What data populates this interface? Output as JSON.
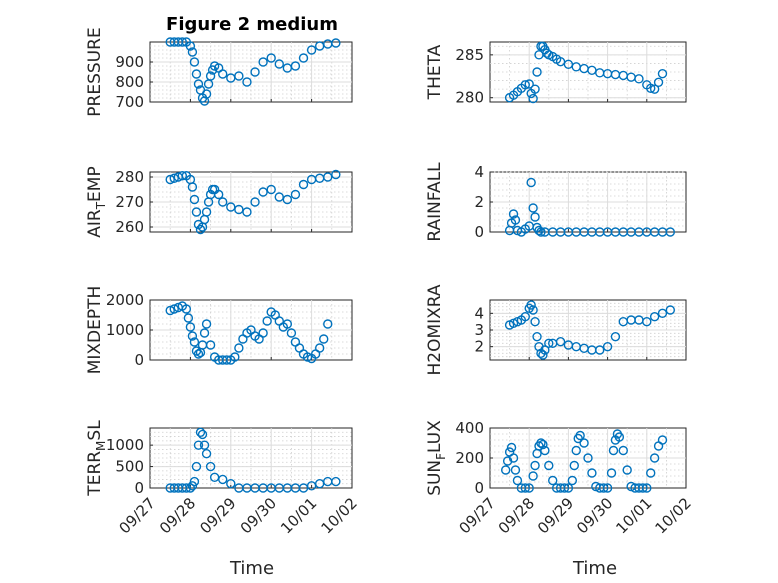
{
  "figure": {
    "title": "Figure 2 medium",
    "xlabel": "Time",
    "marker_color": "#0072BD",
    "xticks": [
      "09/27",
      "09/28",
      "09/29",
      "09/30",
      "10/01",
      "10/02"
    ]
  },
  "chart_data": [
    {
      "type": "scatter",
      "ylabel": "PRESSURE",
      "ylim": [
        700,
        1000
      ],
      "yticks": [
        "700",
        "800",
        "900"
      ],
      "grid": "on",
      "xlim": [
        "09/27",
        "10/02"
      ],
      "x": [
        0.5,
        0.6,
        0.7,
        0.8,
        0.9,
        1.0,
        1.05,
        1.1,
        1.15,
        1.2,
        1.25,
        1.3,
        1.35,
        1.4,
        1.45,
        1.5,
        1.55,
        1.6,
        1.7,
        1.8,
        2.0,
        2.2,
        2.4,
        2.6,
        2.8,
        3.0,
        3.2,
        3.4,
        3.6,
        3.8,
        4.0,
        4.2,
        4.4,
        4.6
      ],
      "y": [
        1000,
        1000,
        1000,
        1000,
        1000,
        980,
        950,
        900,
        840,
        790,
        760,
        720,
        705,
        740,
        790,
        830,
        860,
        880,
        870,
        840,
        820,
        830,
        800,
        850,
        900,
        920,
        890,
        870,
        880,
        920,
        960,
        980,
        990,
        995
      ],
      "x_units": "days since 09/27"
    },
    {
      "type": "scatter",
      "ylabel": "THETA",
      "ylim": [
        279.5,
        286.5
      ],
      "yticks": [
        "280",
        "285"
      ],
      "grid": "on",
      "xlim": [
        "09/27",
        "10/02"
      ],
      "x": [
        0.5,
        0.6,
        0.7,
        0.8,
        0.9,
        1.0,
        1.05,
        1.1,
        1.15,
        1.2,
        1.25,
        1.3,
        1.35,
        1.4,
        1.45,
        1.5,
        1.6,
        1.7,
        1.8,
        2.0,
        2.2,
        2.4,
        2.6,
        2.8,
        3.0,
        3.2,
        3.4,
        3.6,
        3.8,
        4.0,
        4.1,
        4.2,
        4.3,
        4.4
      ],
      "y": [
        280,
        280.3,
        280.7,
        281.1,
        281.5,
        281.6,
        280.5,
        279.9,
        281.0,
        283.0,
        285.0,
        286.0,
        286.0,
        285.6,
        285.2,
        285.0,
        284.8,
        284.5,
        284.2,
        283.9,
        283.6,
        283.4,
        283.2,
        282.9,
        282.8,
        282.7,
        282.6,
        282.4,
        282.2,
        281.5,
        281.1,
        281.0,
        281.8,
        282.8
      ]
    },
    {
      "type": "scatter",
      "ylabel": "AIR_TEMP",
      "ylim": [
        258,
        282
      ],
      "yticks": [
        "260",
        "270",
        "280"
      ],
      "grid": "on",
      "xlim": [
        "09/27",
        "10/02"
      ],
      "x": [
        0.5,
        0.6,
        0.7,
        0.8,
        0.9,
        1.0,
        1.05,
        1.1,
        1.15,
        1.2,
        1.25,
        1.3,
        1.35,
        1.4,
        1.45,
        1.5,
        1.55,
        1.6,
        1.7,
        1.8,
        2.0,
        2.2,
        2.4,
        2.6,
        2.8,
        3.0,
        3.2,
        3.4,
        3.6,
        3.8,
        4.0,
        4.2,
        4.4,
        4.6
      ],
      "y": [
        279,
        279.5,
        280,
        280.5,
        280.5,
        279,
        276,
        271,
        266,
        261,
        259,
        260,
        263,
        266,
        270,
        273,
        275,
        275,
        273,
        270,
        268,
        267,
        266,
        270,
        274,
        275,
        272,
        271,
        273,
        277,
        279,
        279.5,
        280,
        281
      ]
    },
    {
      "type": "scatter",
      "ylabel": "RAINFALL",
      "ylim": [
        0,
        4
      ],
      "yticks": [
        "0",
        "2",
        "4"
      ],
      "grid": "on",
      "xlim": [
        "09/27",
        "10/02"
      ],
      "x": [
        0.5,
        0.55,
        0.6,
        0.65,
        0.7,
        0.8,
        0.9,
        1.0,
        1.05,
        1.1,
        1.15,
        1.2,
        1.25,
        1.3,
        1.4,
        1.6,
        1.8,
        2.0,
        2.2,
        2.4,
        2.6,
        2.8,
        3.0,
        3.2,
        3.4,
        3.6,
        3.8,
        4.0,
        4.2,
        4.4,
        4.6
      ],
      "y": [
        0.1,
        0.6,
        1.2,
        0.8,
        0.1,
        0,
        0.2,
        0.4,
        3.3,
        1.6,
        1.0,
        0.3,
        0.1,
        0,
        0,
        0,
        0,
        0,
        0,
        0,
        0,
        0,
        0,
        0,
        0,
        0,
        0,
        0,
        0,
        0,
        0
      ]
    },
    {
      "type": "scatter",
      "ylabel": "MIXDEPTH",
      "ylim": [
        0,
        2000
      ],
      "yticks": [
        "0",
        "1000",
        "2000"
      ],
      "grid": "on",
      "xlim": [
        "09/27",
        "10/02"
      ],
      "x": [
        0.5,
        0.6,
        0.7,
        0.8,
        0.9,
        0.95,
        1.0,
        1.05,
        1.1,
        1.15,
        1.2,
        1.25,
        1.3,
        1.35,
        1.4,
        1.5,
        1.6,
        1.7,
        1.8,
        1.9,
        2.0,
        2.1,
        2.2,
        2.3,
        2.4,
        2.5,
        2.6,
        2.7,
        2.8,
        2.9,
        3.0,
        3.1,
        3.2,
        3.3,
        3.4,
        3.5,
        3.6,
        3.7,
        3.8,
        3.9,
        4.0,
        4.1,
        4.2,
        4.3,
        4.4
      ],
      "y": [
        1650,
        1700,
        1750,
        1800,
        1700,
        1400,
        1100,
        800,
        600,
        300,
        200,
        250,
        500,
        900,
        1200,
        500,
        100,
        0,
        0,
        0,
        0,
        100,
        400,
        700,
        900,
        1000,
        800,
        700,
        900,
        1300,
        1600,
        1500,
        1300,
        1100,
        1200,
        900,
        600,
        400,
        200,
        100,
        50,
        200,
        400,
        700,
        1200
      ]
    },
    {
      "type": "scatter",
      "ylabel": "H2OMIXRA",
      "ylim": [
        1.2,
        4.8
      ],
      "yticks": [
        "2",
        "3",
        "4"
      ],
      "grid": "on",
      "xlim": [
        "09/27",
        "10/02"
      ],
      "x": [
        0.5,
        0.6,
        0.7,
        0.8,
        0.9,
        1.0,
        1.05,
        1.1,
        1.15,
        1.2,
        1.25,
        1.3,
        1.35,
        1.4,
        1.5,
        1.6,
        1.8,
        2.0,
        2.2,
        2.4,
        2.6,
        2.8,
        3.0,
        3.2,
        3.4,
        3.6,
        3.8,
        4.0,
        4.2,
        4.4,
        4.6
      ],
      "y": [
        3.3,
        3.4,
        3.5,
        3.6,
        3.8,
        4.3,
        4.5,
        4.2,
        3.5,
        2.6,
        2.0,
        1.6,
        1.5,
        1.8,
        2.2,
        2.2,
        2.3,
        2.1,
        2.0,
        1.9,
        1.8,
        1.8,
        2.0,
        2.6,
        3.5,
        3.6,
        3.6,
        3.5,
        3.8,
        4.0,
        4.2
      ]
    },
    {
      "type": "scatter",
      "ylabel": "TERR_MSL",
      "ylim": [
        0,
        1400
      ],
      "yticks": [
        "0",
        "500",
        "1000"
      ],
      "grid": "on",
      "xlim": [
        "09/27",
        "10/02"
      ],
      "x": [
        0.5,
        0.6,
        0.7,
        0.8,
        0.9,
        1.0,
        1.05,
        1.1,
        1.15,
        1.2,
        1.25,
        1.3,
        1.35,
        1.4,
        1.5,
        1.6,
        1.8,
        2.0,
        2.2,
        2.4,
        2.6,
        2.8,
        3.0,
        3.2,
        3.4,
        3.6,
        3.8,
        4.0,
        4.2,
        4.4,
        4.6
      ],
      "y": [
        0,
        0,
        0,
        0,
        0,
        0,
        50,
        150,
        500,
        1000,
        1300,
        1250,
        1000,
        800,
        500,
        250,
        200,
        100,
        0,
        0,
        0,
        0,
        0,
        0,
        0,
        0,
        0,
        50,
        100,
        150,
        150
      ]
    },
    {
      "type": "scatter",
      "ylabel": "SUN_FLUX",
      "ylim": [
        0,
        400
      ],
      "yticks": [
        "0",
        "200",
        "400"
      ],
      "grid": "on",
      "xlim": [
        "09/27",
        "10/02"
      ],
      "x": [
        0.4,
        0.45,
        0.5,
        0.55,
        0.6,
        0.65,
        0.7,
        0.8,
        0.9,
        1.0,
        1.1,
        1.15,
        1.2,
        1.25,
        1.3,
        1.35,
        1.4,
        1.5,
        1.6,
        1.7,
        1.8,
        1.9,
        2.0,
        2.1,
        2.15,
        2.2,
        2.25,
        2.3,
        2.4,
        2.5,
        2.6,
        2.7,
        2.8,
        2.9,
        3.0,
        3.1,
        3.15,
        3.2,
        3.25,
        3.3,
        3.4,
        3.5,
        3.6,
        3.7,
        3.8,
        3.9,
        4.0,
        4.1,
        4.2,
        4.3,
        4.4
      ],
      "y": [
        120,
        180,
        240,
        270,
        200,
        120,
        50,
        0,
        0,
        0,
        80,
        150,
        230,
        280,
        300,
        290,
        250,
        150,
        50,
        0,
        0,
        0,
        0,
        50,
        150,
        250,
        330,
        350,
        300,
        200,
        100,
        10,
        0,
        0,
        0,
        100,
        250,
        320,
        360,
        340,
        250,
        120,
        10,
        0,
        0,
        0,
        0,
        100,
        200,
        280,
        320
      ]
    }
  ]
}
